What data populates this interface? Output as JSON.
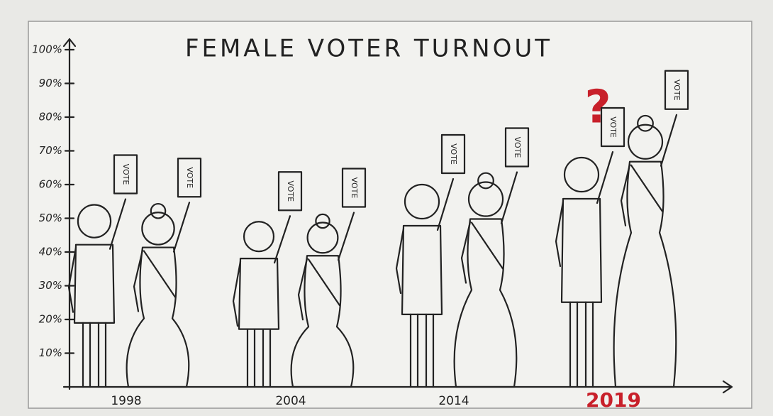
{
  "chart_data": {
    "type": "pictogram",
    "title": "FEMALE VOTER TURNOUT",
    "categories": [
      "1998",
      "2004",
      "2014",
      "2019"
    ],
    "series": [
      {
        "figure": "male",
        "color": "#222222",
        "values": [
          54,
          49,
          60,
          68
        ]
      },
      {
        "figure": "female",
        "color": "#222222",
        "values": [
          53,
          50,
          62,
          79
        ]
      }
    ],
    "sign_text": "VOTE",
    "annotations": [
      {
        "text": "?",
        "category": "2019",
        "color": "#c8202a"
      }
    ],
    "ylim": [
      0,
      100
    ],
    "yticks": [
      {
        "value": 10,
        "label": "10%"
      },
      {
        "value": 20,
        "label": "20%"
      },
      {
        "value": 30,
        "label": "30%"
      },
      {
        "value": 40,
        "label": "40%"
      },
      {
        "value": 50,
        "label": "50%"
      },
      {
        "value": 60,
        "label": "60%"
      },
      {
        "value": 70,
        "label": "70%"
      },
      {
        "value": 80,
        "label": "80%"
      },
      {
        "value": 90,
        "label": "90%"
      },
      {
        "value": 100,
        "label": "100%"
      }
    ],
    "grid": false
  }
}
